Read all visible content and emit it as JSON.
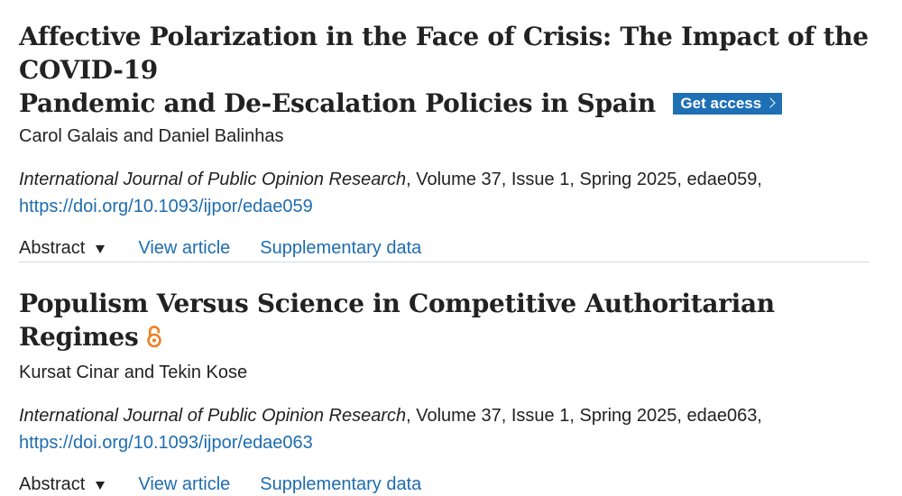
{
  "articles": [
    {
      "title_line1": "Affective Polarization in the Face of Crisis: The Impact of the COVID-19",
      "title_line2": "Pandemic and De-Escalation Policies in Spain",
      "get_access_label": "Get access",
      "authors": "Carol Galais and Daniel Balinhas",
      "journal": "International Journal of Public Opinion Research",
      "citation_rest": ", Volume 37, Issue 1, Spring 2025, edae059,",
      "doi": "https://doi.org/10.1093/ijpor/edae059",
      "abstract_label": "Abstract",
      "view_article_label": "View article",
      "supplementary_label": "Supplementary data"
    },
    {
      "title": "Populism Versus Science in Competitive Authoritarian Regimes",
      "open_access_icon": "open-access-lock-icon",
      "authors": "Kursat Cinar and Tekin Kose",
      "journal": "International Journal of Public Opinion Research",
      "citation_rest": ", Volume 37, Issue 1, Spring 2025, edae063,",
      "doi": "https://doi.org/10.1093/ijpor/edae063",
      "abstract_label": "Abstract",
      "view_article_label": "View article",
      "supplementary_label": "Supplementary data"
    }
  ],
  "colors": {
    "link": "#1e6cb0",
    "get_access_bg": "#1f6fb5",
    "open_access": "#f07f22",
    "divider": "#d3dbe3",
    "text": "#222222"
  }
}
